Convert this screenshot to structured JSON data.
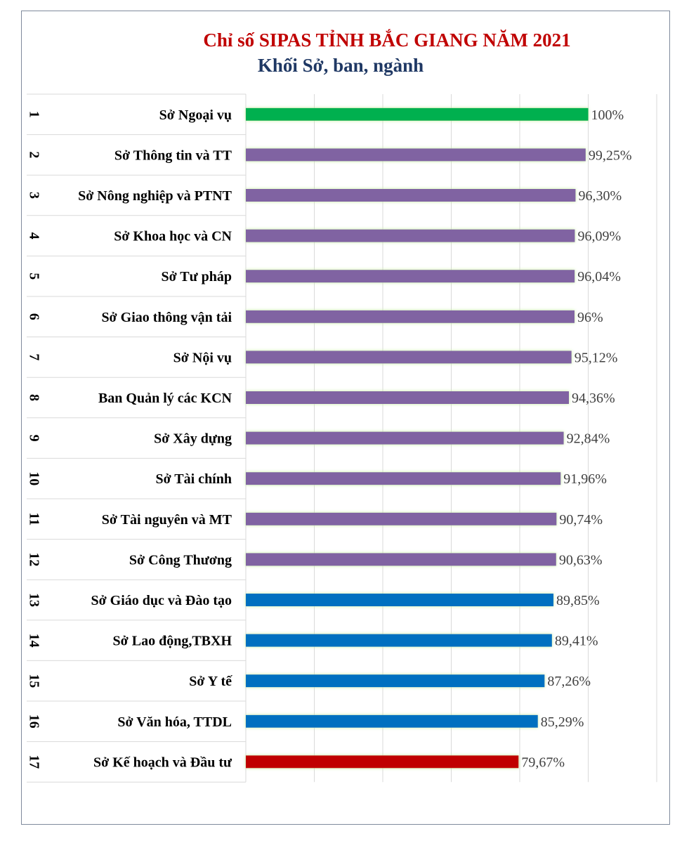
{
  "chart_data": {
    "type": "bar",
    "orientation": "horizontal",
    "title": "Chỉ số SIPAS TỈNH BẮC GIANG  NĂM 2021",
    "subtitle": "Khối Sở, ban, ngành",
    "xlim": [
      0,
      120
    ],
    "grid": true,
    "ranks": [
      "1",
      "2",
      "3",
      "4",
      "5",
      "6",
      "7",
      "8",
      "9",
      "10",
      "11",
      "12",
      "13",
      "14",
      "15",
      "16",
      "17"
    ],
    "categories": [
      "Sở Ngoại vụ",
      "Sở Thông tin và TT",
      "Sở Nông nghiệp và PTNT",
      "Sở Khoa học và CN",
      "Sở Tư pháp",
      "Sở Giao thông vận tải",
      "Sở Nội vụ",
      "Ban Quản lý các KCN",
      "Sở Xây dựng",
      "Sở Tài chính",
      "Sở Tài nguyên và MT",
      "Sở Công Thương",
      "Sở Giáo dục và Đào tạo",
      "Sở Lao động,TBXH",
      "Sở Y tế",
      "Sở Văn hóa, TTDL",
      "Sở Kế hoạch và Đầu tư"
    ],
    "values": [
      100,
      99.25,
      96.3,
      96.09,
      96.04,
      96,
      95.12,
      94.36,
      92.84,
      91.96,
      90.74,
      90.63,
      89.85,
      89.41,
      87.26,
      85.29,
      79.67
    ],
    "labels": [
      "100%",
      "99,25%",
      "96,30%",
      "96,09%",
      "96,04%",
      "96%",
      "95,12%",
      "94,36%",
      "92,84%",
      "91,96%",
      "90,74%",
      "90,63%",
      "89,85%",
      "89,41%",
      "87,26%",
      "85,29%",
      "79,67%"
    ],
    "colors": [
      "#00b050",
      "#8064a2",
      "#8064a2",
      "#8064a2",
      "#8064a2",
      "#8064a2",
      "#8064a2",
      "#8064a2",
      "#8064a2",
      "#8064a2",
      "#8064a2",
      "#8064a2",
      "#0070c0",
      "#0070c0",
      "#0070c0",
      "#0070c0",
      "#c00000"
    ]
  }
}
